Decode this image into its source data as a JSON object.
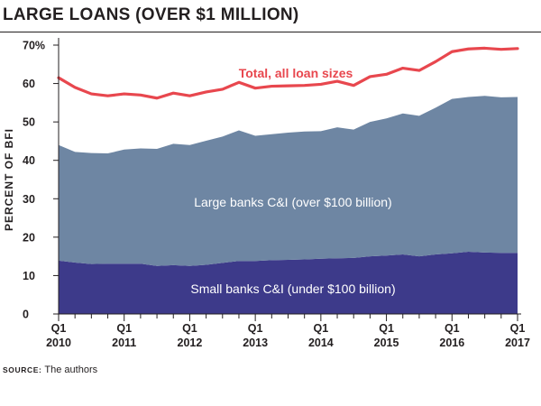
{
  "header": {
    "title": "LARGE LOANS (OVER $1 MILLION)"
  },
  "footer": {
    "source_label": "SOURCE:",
    "source_text": "The authors"
  },
  "chart_data": {
    "type": "area",
    "title": "LARGE LOANS (OVER $1 MILLION)",
    "ylabel": "PERCENT OF BFI",
    "xlabel": "",
    "ylim": [
      0,
      70
    ],
    "yticks": [
      0,
      10,
      20,
      30,
      40,
      50,
      60,
      70
    ],
    "ytick_labels": [
      "0",
      "10",
      "20",
      "30",
      "40",
      "50",
      "60",
      "70%"
    ],
    "xticks": [
      {
        "quarter": "Q1",
        "year": "2010",
        "index": 0
      },
      {
        "quarter": "Q1",
        "year": "2011",
        "index": 4
      },
      {
        "quarter": "Q1",
        "year": "2012",
        "index": 8
      },
      {
        "quarter": "Q1",
        "year": "2013",
        "index": 12
      },
      {
        "quarter": "Q1",
        "year": "2014",
        "index": 16
      },
      {
        "quarter": "Q1",
        "year": "2015",
        "index": 20
      },
      {
        "quarter": "Q1",
        "year": "2016",
        "index": 24
      },
      {
        "quarter": "Q1",
        "year": "2017",
        "index": 28
      }
    ],
    "x": [
      "2010Q1",
      "2010Q2",
      "2010Q3",
      "2010Q4",
      "2011Q1",
      "2011Q2",
      "2011Q3",
      "2011Q4",
      "2012Q1",
      "2012Q2",
      "2012Q3",
      "2012Q4",
      "2013Q1",
      "2013Q2",
      "2013Q3",
      "2013Q4",
      "2014Q1",
      "2014Q2",
      "2014Q3",
      "2014Q4",
      "2015Q1",
      "2015Q2",
      "2015Q3",
      "2015Q4",
      "2016Q1",
      "2016Q2",
      "2016Q3",
      "2016Q4",
      "2017Q1"
    ],
    "series": [
      {
        "name": "Small banks C&I (under $100 billion)",
        "kind": "area",
        "color": "#3d3a8a",
        "values": [
          13.9,
          13.4,
          13.0,
          13.1,
          13.1,
          13.1,
          12.5,
          12.7,
          12.5,
          12.8,
          13.3,
          13.8,
          13.8,
          14.0,
          14.1,
          14.2,
          14.4,
          14.5,
          14.6,
          15.0,
          15.2,
          15.5,
          15.0,
          15.5,
          15.8,
          16.2,
          16.0,
          15.9,
          15.9
        ]
      },
      {
        "name": "Large banks C&I (over $100 billion)",
        "kind": "area",
        "color": "#6e86a3",
        "values": [
          30.1,
          28.8,
          28.9,
          28.7,
          29.7,
          30.0,
          30.5,
          31.6,
          31.5,
          32.3,
          32.9,
          34.0,
          32.6,
          32.8,
          33.1,
          33.3,
          33.2,
          34.1,
          33.4,
          35.0,
          35.7,
          36.7,
          36.6,
          38.2,
          40.2,
          40.3,
          40.8,
          40.5,
          40.6
        ]
      },
      {
        "name": "Total, all loan sizes",
        "kind": "line",
        "color": "#e8474e",
        "values": [
          61.5,
          59.0,
          57.3,
          56.8,
          57.3,
          57.0,
          56.2,
          57.5,
          56.8,
          57.8,
          58.5,
          60.3,
          58.8,
          59.3,
          59.4,
          59.5,
          59.8,
          60.6,
          59.5,
          61.8,
          62.4,
          64.0,
          63.4,
          65.7,
          68.3,
          69.0,
          69.2,
          68.9,
          69.1
        ]
      }
    ],
    "annotations": [
      {
        "text": "Total, all loan sizes",
        "series": "Total, all loan sizes"
      },
      {
        "text": "Large banks C&I (over $100 billion)",
        "series": "Large banks C&I (over $100 billion)"
      },
      {
        "text": "Small banks C&I (under $100 billion)",
        "series": "Small banks C&I (under $100 billion)"
      }
    ],
    "grid": false,
    "legend": "none"
  }
}
